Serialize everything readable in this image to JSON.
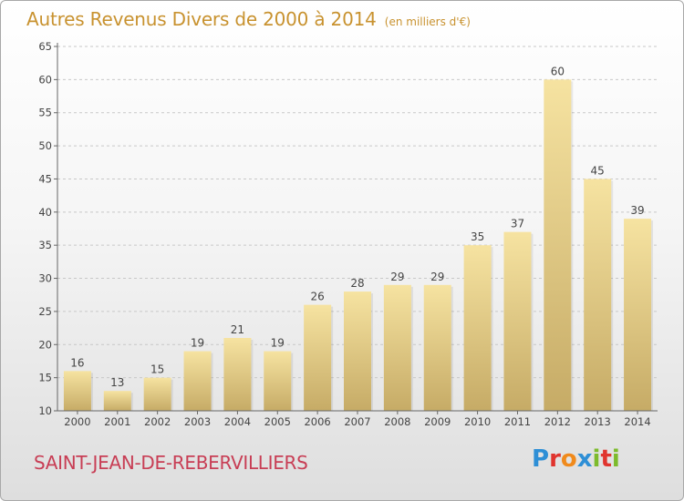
{
  "title": "Autres Revenus Divers de 2000 à 2014",
  "subtitle": "(en milliers d'€)",
  "place_name": "SAINT-JEAN-DE-REBERVILLIERS",
  "logo": {
    "text": "Proxiti",
    "letters": [
      {
        "ch": "P",
        "color": "#2e8fd6"
      },
      {
        "ch": "r",
        "color": "#e0342e"
      },
      {
        "ch": "o",
        "color": "#f08a1c"
      },
      {
        "ch": "x",
        "color": "#2e8fd6"
      },
      {
        "ch": "i",
        "color": "#7dbb2c"
      },
      {
        "ch": "t",
        "color": "#e0342e"
      },
      {
        "ch": "i",
        "color": "#7dbb2c"
      }
    ]
  },
  "colors": {
    "bar_light": "#f6e3a1",
    "bar_dark": "#c6ab66",
    "title": "#c8922f",
    "place": "#c83e55",
    "grid": "#c8c8c8"
  },
  "chart_data": {
    "type": "bar",
    "categories": [
      "2000",
      "2001",
      "2002",
      "2003",
      "2004",
      "2005",
      "2006",
      "2007",
      "2008",
      "2009",
      "2010",
      "2011",
      "2012",
      "2013",
      "2014"
    ],
    "values": [
      16,
      13,
      15,
      19,
      21,
      19,
      26,
      28,
      29,
      29,
      35,
      37,
      60,
      45,
      39
    ],
    "data_labels": [
      "16",
      "13",
      "15",
      "19",
      "21",
      "19",
      "26",
      "28",
      "29",
      "29",
      "35",
      "37",
      "60",
      "45",
      "39"
    ],
    "y_ticks": [
      10,
      15,
      20,
      25,
      30,
      35,
      40,
      45,
      50,
      55,
      60,
      65
    ],
    "ylim": [
      10,
      65
    ],
    "grid": true,
    "legend": "none"
  }
}
